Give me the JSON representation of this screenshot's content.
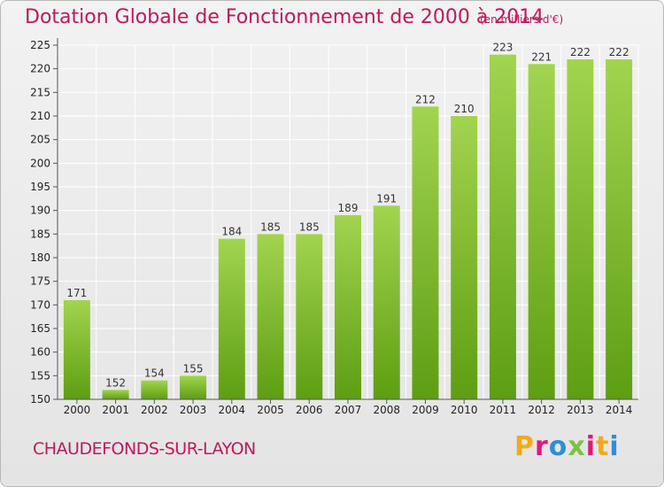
{
  "header": {
    "title": "Dotation Globale de Fonctionnement de 2000 à 2014",
    "unit_note": "(en milliers d'€)"
  },
  "footer": {
    "commune": "CHAUDEFONDS-SUR-LAYON",
    "brand": "Proxiti",
    "brand_colors": [
      "#f3a91b",
      "#e2187a",
      "#2c8fd6",
      "#7cc242",
      "#e2187a",
      "#f3a91b",
      "#2c8fd6"
    ]
  },
  "colors": {
    "text_accent": "#c1185a",
    "bar_light": "#a2d44f",
    "bar_dark": "#5d9e12",
    "grid": "#ffffff"
  },
  "chart_data": {
    "type": "bar",
    "title": "Dotation Globale de Fonctionnement de 2000 à 2014",
    "subtitle": "(en milliers d'€)",
    "categories": [
      "2000",
      "2001",
      "2002",
      "2003",
      "2004",
      "2005",
      "2006",
      "2007",
      "2008",
      "2009",
      "2010",
      "2011",
      "2012",
      "2013",
      "2014"
    ],
    "values": [
      171,
      152,
      154,
      155,
      184,
      185,
      185,
      189,
      191,
      212,
      210,
      223,
      221,
      222,
      222
    ],
    "ylim": [
      150,
      225
    ],
    "yticks": [
      150,
      155,
      160,
      165,
      170,
      175,
      180,
      185,
      190,
      195,
      200,
      205,
      210,
      215,
      220,
      225
    ],
    "grid": true,
    "data_labels": true
  }
}
